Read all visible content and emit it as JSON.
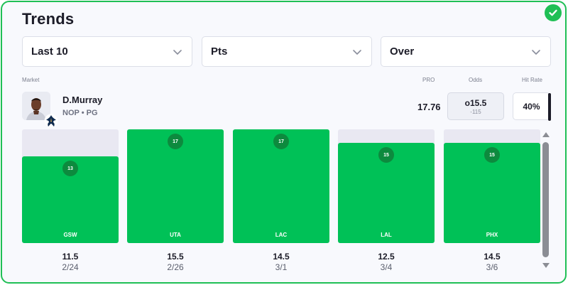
{
  "header": {
    "title": "Trends"
  },
  "filters": {
    "range": "Last 10",
    "stat": "Pts",
    "direction": "Over"
  },
  "columns": {
    "market": "Market",
    "pro": "PRO",
    "odds": "Odds",
    "hit_rate": "Hit Rate"
  },
  "player": {
    "name": "D.Murray",
    "team_pos": "NOP • PG",
    "pro": "17.76",
    "odds_line": "o15.5",
    "odds_price": "-115",
    "hit_rate": "40%"
  },
  "games": [
    {
      "points": "13",
      "opp": "GSW",
      "line": "11.5",
      "date": "2/24"
    },
    {
      "points": "17",
      "opp": "UTA",
      "line": "15.5",
      "date": "2/26"
    },
    {
      "points": "17",
      "opp": "LAC",
      "line": "14.5",
      "date": "3/1"
    },
    {
      "points": "15",
      "opp": "LAL",
      "line": "12.5",
      "date": "3/4"
    },
    {
      "points": "15",
      "opp": "PHX",
      "line": "14.5",
      "date": "3/6"
    }
  ],
  "chart_max": 17,
  "colors": {
    "accent": "#1fbf55",
    "bar": "#00c157",
    "bubble": "#0d8a3e",
    "track": "#e9e8f2"
  },
  "icons": {
    "status": "check-circle-icon",
    "dropdown": "chevron-down-icon",
    "team": "pelicans-logo-icon"
  }
}
